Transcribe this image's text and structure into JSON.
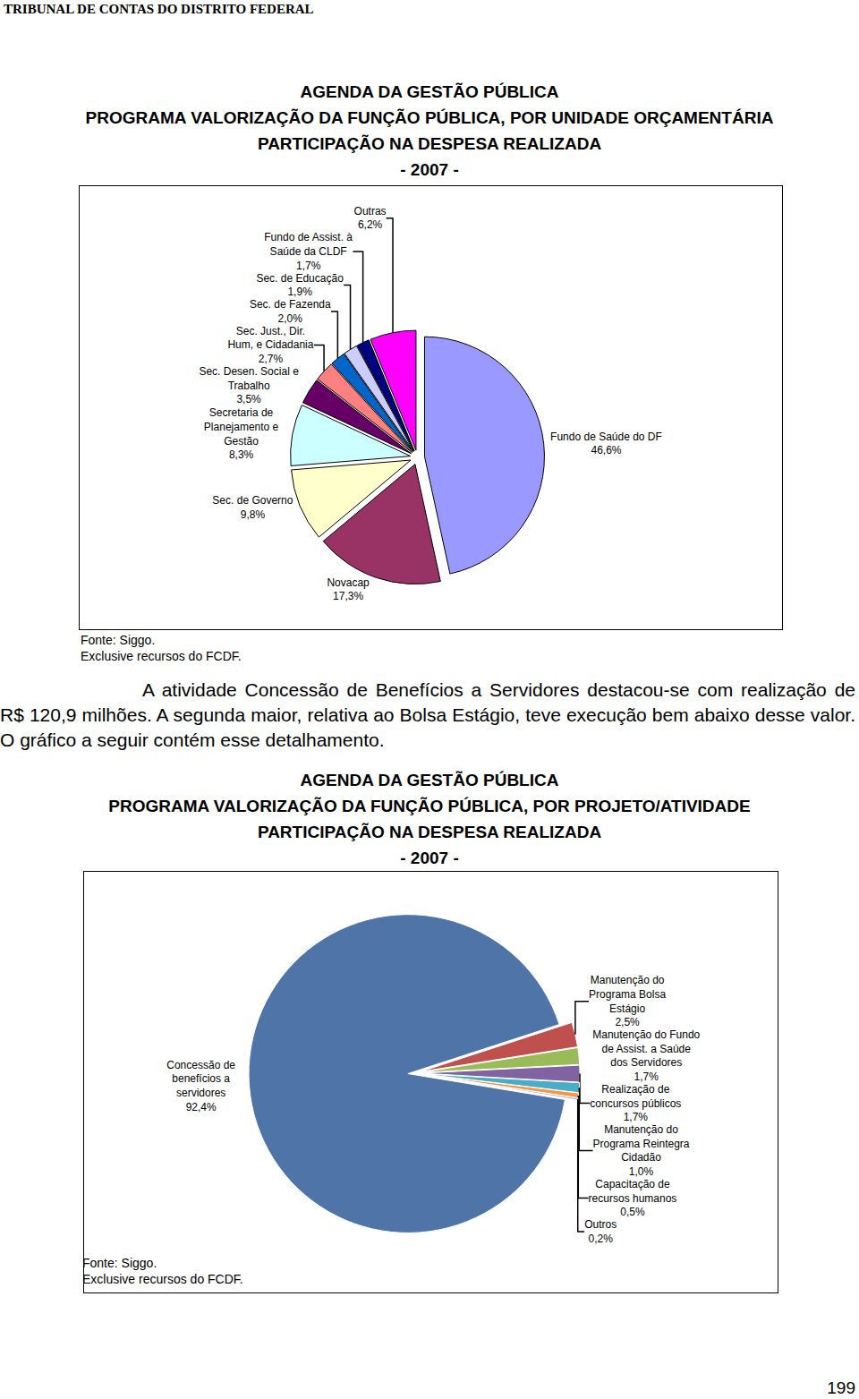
{
  "header": "TRIBUNAL DE CONTAS DO DISTRITO FEDERAL",
  "chart_data": [
    {
      "type": "pie",
      "title": [
        "AGENDA DA GESTÃO PÚBLICA",
        "PROGRAMA VALORIZAÇÃO DA FUNÇÃO PÚBLICA, POR UNIDADE ORÇAMENTÁRIA",
        "PARTICIPAÇÃO NA DESPESA REALIZADA",
        "- 2007 -"
      ],
      "categories": [
        "Fundo de Saúde do DF",
        "Novacap",
        "Sec. de Governo",
        "Secretaria de Planejamento e Gestão",
        "Sec. Desen. Social e Trabalho",
        "Sec. Just., Dir. Hum, e Cidadania",
        "Sec. de Fazenda",
        "Sec. de Educação",
        "Fundo de Assist. à Saúde da CLDF",
        "Outras"
      ],
      "values": [
        46.6,
        17.3,
        9.8,
        8.3,
        3.5,
        2.7,
        2.0,
        1.9,
        1.7,
        6.2
      ],
      "value_labels": [
        "46,6%",
        "17,3%",
        "9,8%",
        "8,3%",
        "3,5%",
        "2,7%",
        "2,0%",
        "1,9%",
        "1,7%",
        "6,2%"
      ],
      "colors": [
        "#9999FF",
        "#993366",
        "#FFFFCC",
        "#CCFFFF",
        "#660066",
        "#FF8080",
        "#0066CC",
        "#CCCCFF",
        "#000080",
        "#FF00FF"
      ],
      "data_labels": true,
      "source": [
        "Fonte: Siggo.",
        "Exclusive recursos do FCDF."
      ]
    },
    {
      "type": "pie",
      "title": [
        "AGENDA DA GESTÃO PÚBLICA",
        "PROGRAMA VALORIZAÇÃO DA FUNÇÃO PÚBLICA, POR PROJETO/ATIVIDADE",
        "PARTICIPAÇÃO NA DESPESA REALIZADA",
        "- 2007 -"
      ],
      "categories": [
        "Manutenção do Programa Bolsa Estágio",
        "Manutenção do Fundo de Assist. a Saúde dos Servidores",
        "Realização de concursos públicos",
        "Manutenção do Programa Reintegra Cidadão",
        "Capacitação de recursos humanos",
        "Outros",
        "Concessão de benefícios a servidores"
      ],
      "values": [
        2.5,
        1.7,
        1.7,
        1.0,
        0.5,
        0.2,
        92.4
      ],
      "value_labels": [
        "2,5%",
        "1,7%",
        "1,7%",
        "1,0%",
        "0,5%",
        "0,2%",
        "92,4%"
      ],
      "colors": [
        "#C0504D",
        "#9BBB59",
        "#8064A2",
        "#4BACC6",
        "#F79646",
        "#A9B8D8",
        "#4F75A8"
      ],
      "data_labels": true,
      "source": [
        "Fonte: Siggo.",
        "Exclusive recursos do FCDF."
      ]
    }
  ],
  "paragraph": "A atividade Concessão de Benefícios a Servidores destacou-se com realização de R$ 120,9 milhões. A segunda maior, relativa ao Bolsa Estágio, teve execução bem abaixo desse valor. O gráfico a seguir contém esse detalhamento.",
  "page_number": "199"
}
